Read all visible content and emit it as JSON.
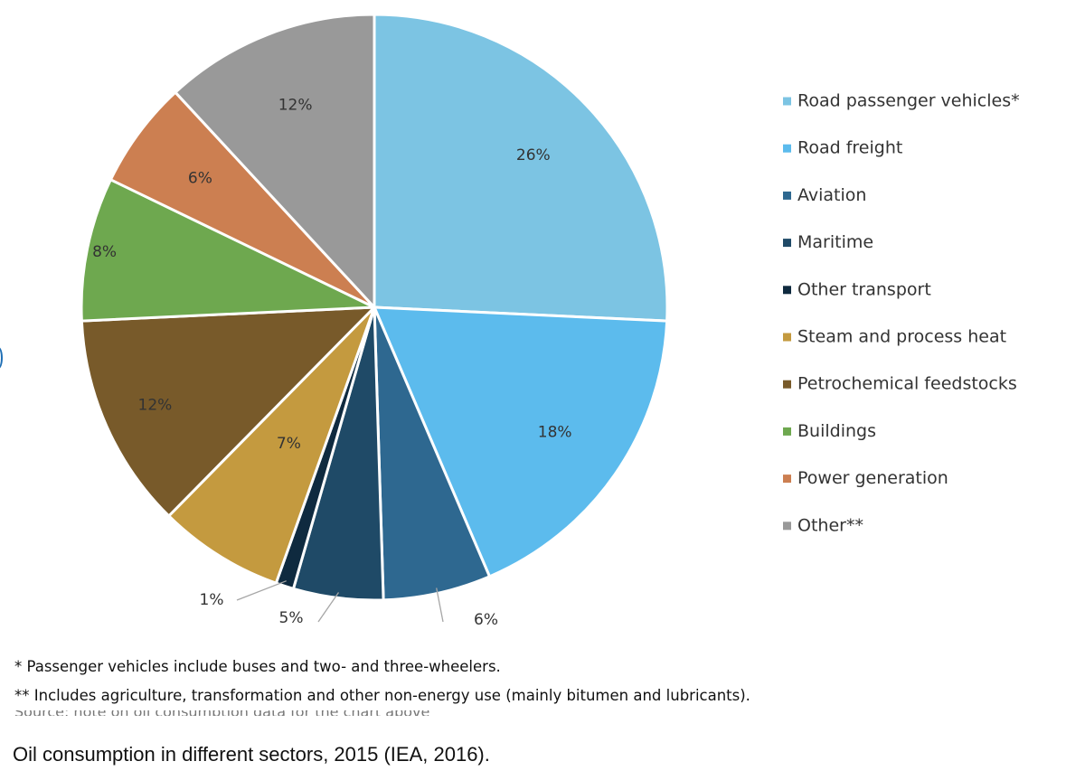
{
  "chart_data": {
    "type": "pie",
    "start": "12 o'clock",
    "direction": "clockwise",
    "legend_position": "right",
    "slices": [
      {
        "name": "Road passenger vehicles*",
        "value": 26,
        "label": "26%",
        "color": "#7cc4e3"
      },
      {
        "name": "Road freight",
        "value": 18,
        "label": "18%",
        "color": "#5cbbed"
      },
      {
        "name": "Aviation",
        "value": 6,
        "label": "6%",
        "color": "#2e6890"
      },
      {
        "name": "Maritime",
        "value": 5,
        "label": "5%",
        "color": "#1f4a67"
      },
      {
        "name": "Other transport",
        "value": 1,
        "label": "1%",
        "color": "#0f2a3f"
      },
      {
        "name": "Steam and process heat",
        "value": 7,
        "label": "7%",
        "color": "#c49a3f"
      },
      {
        "name": "Petrochemical feedstocks",
        "value": 12,
        "label": "12%",
        "color": "#785a2a"
      },
      {
        "name": "Buildings",
        "value": 8,
        "label": "8%",
        "color": "#6ea84f"
      },
      {
        "name": "Power generation",
        "value": 6,
        "label": "6%",
        "color": "#cc7f51"
      },
      {
        "name": "Other**",
        "value": 12,
        "label": "12%",
        "color": "#999999"
      }
    ]
  },
  "footnotes": [
    "* Passenger vehicles include buses and two- and three-wheelers.",
    "** Includes agriculture, transformation and other non-energy use (mainly bitumen and lubricants)."
  ],
  "caption": "Oil consumption in different sectors, 2015 (IEA, 2016)."
}
